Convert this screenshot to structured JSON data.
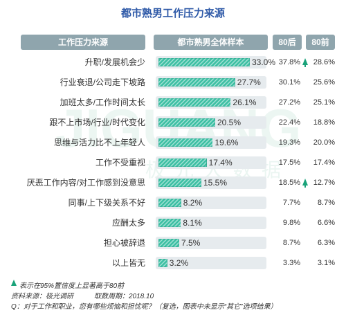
{
  "chart_data": {
    "type": "bar",
    "title": "都市熟男工作压力来源",
    "headers": {
      "category": "工作压力来源",
      "overall": "都市熟男全体样本",
      "post80": "80后",
      "pre80": "80前"
    },
    "categories": [
      "升职/发展机会少",
      "行业衰退/公司走下坡路",
      "加班太多/工作时间太长",
      "跟不上市场/行业/时代变化",
      "思维与活力比不上年轻人",
      "工作不受重视",
      "厌恶工作内容/对工作感到没意思",
      "同事/上下级关系不好",
      "应酬太多",
      "担心被辞退",
      "以上皆无"
    ],
    "series": [
      {
        "name": "都市熟男全体样本",
        "values": [
          33.0,
          27.7,
          26.1,
          20.5,
          19.6,
          17.4,
          15.5,
          8.2,
          8.1,
          7.5,
          3.2
        ]
      },
      {
        "name": "80后",
        "values": [
          37.8,
          30.1,
          27.2,
          22.4,
          19.3,
          17.5,
          18.5,
          7.7,
          9.8,
          8.7,
          3.3
        ]
      },
      {
        "name": "80前",
        "values": [
          28.6,
          25.6,
          25.1,
          18.8,
          20.0,
          17.4,
          12.7,
          8.7,
          6.6,
          6.3,
          3.1
        ]
      }
    ],
    "labels": {
      "overall": [
        "33.0%",
        "27.7%",
        "26.1%",
        "20.5%",
        "19.6%",
        "17.4%",
        "15.5%",
        "8.2%",
        "8.1%",
        "7.5%",
        "3.2%"
      ],
      "post80": [
        "37.8%",
        "30.1%",
        "27.2%",
        "22.4%",
        "19.3%",
        "17.5%",
        "18.5%",
        "7.7%",
        "9.8%",
        "8.7%",
        "3.3%"
      ],
      "pre80": [
        "28.6%",
        "25.6%",
        "25.1%",
        "18.8%",
        "20.0%",
        "17.4%",
        "12.7%",
        "8.7%",
        "6.6%",
        "6.3%",
        "3.1%"
      ]
    },
    "significant_rows": [
      0,
      6
    ],
    "xlim": [
      0,
      40
    ],
    "bar_color": "#3cbfa3"
  },
  "watermark": {
    "brand": "JIGUANG",
    "cn": "极光大数据"
  },
  "footer": {
    "note": "表示在95%置信度上显著高于80前",
    "source": "资料来源：极光调研　　　取数周期：2018.10",
    "question": "Q：对于工作和职业，您有哪些烦恼和担忧呢？（复选，图表中未显示“其它”选项结果）"
  }
}
